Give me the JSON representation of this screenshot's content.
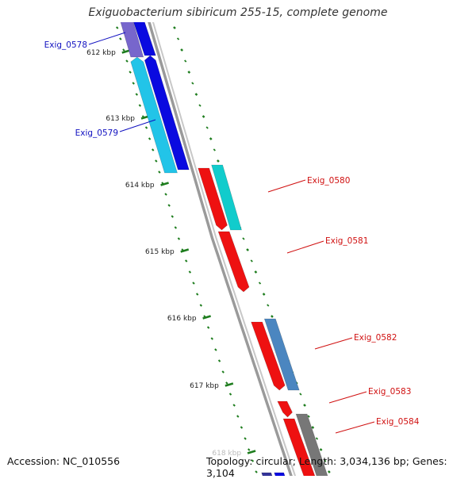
{
  "title": "Exiguobacterium sibiricum 255-15, complete genome",
  "footer": {
    "accession": "Accession: NC_010556",
    "summary": "Topology: circular; Length: 3,034,136 bp; Genes: 3,104"
  },
  "scale_unit": "kbp",
  "ticks": [
    {
      "kbp": 612,
      "label": "612 kbp"
    },
    {
      "kbp": 613,
      "label": "613 kbp"
    },
    {
      "kbp": 614,
      "label": "614 kbp"
    },
    {
      "kbp": 615,
      "label": "615 kbp"
    },
    {
      "kbp": 616,
      "label": "616 kbp"
    },
    {
      "kbp": 617,
      "label": "617 kbp"
    },
    {
      "kbp": 618,
      "label": "618 kbp"
    }
  ],
  "colors": {
    "backbone": "#8c8c8c",
    "tick": "#1e7d1e",
    "forward_label": "#1010c0",
    "reverse_label": "#d01010"
  },
  "genes": [
    {
      "name": "Exig_0578",
      "strand": "forward",
      "label": "Exig_0578"
    },
    {
      "name": "Exig_0579",
      "strand": "forward",
      "label": "Exig_0579"
    },
    {
      "name": "Exig_0580",
      "strand": "reverse",
      "label": "Exig_0580"
    },
    {
      "name": "Exig_0581",
      "strand": "reverse",
      "label": "Exig_0581"
    },
    {
      "name": "Exig_0582",
      "strand": "reverse",
      "label": "Exig_0582"
    },
    {
      "name": "Exig_0583",
      "strand": "reverse",
      "label": "Exig_0583"
    },
    {
      "name": "Exig_0584",
      "strand": "reverse",
      "label": "Exig_0584"
    }
  ]
}
